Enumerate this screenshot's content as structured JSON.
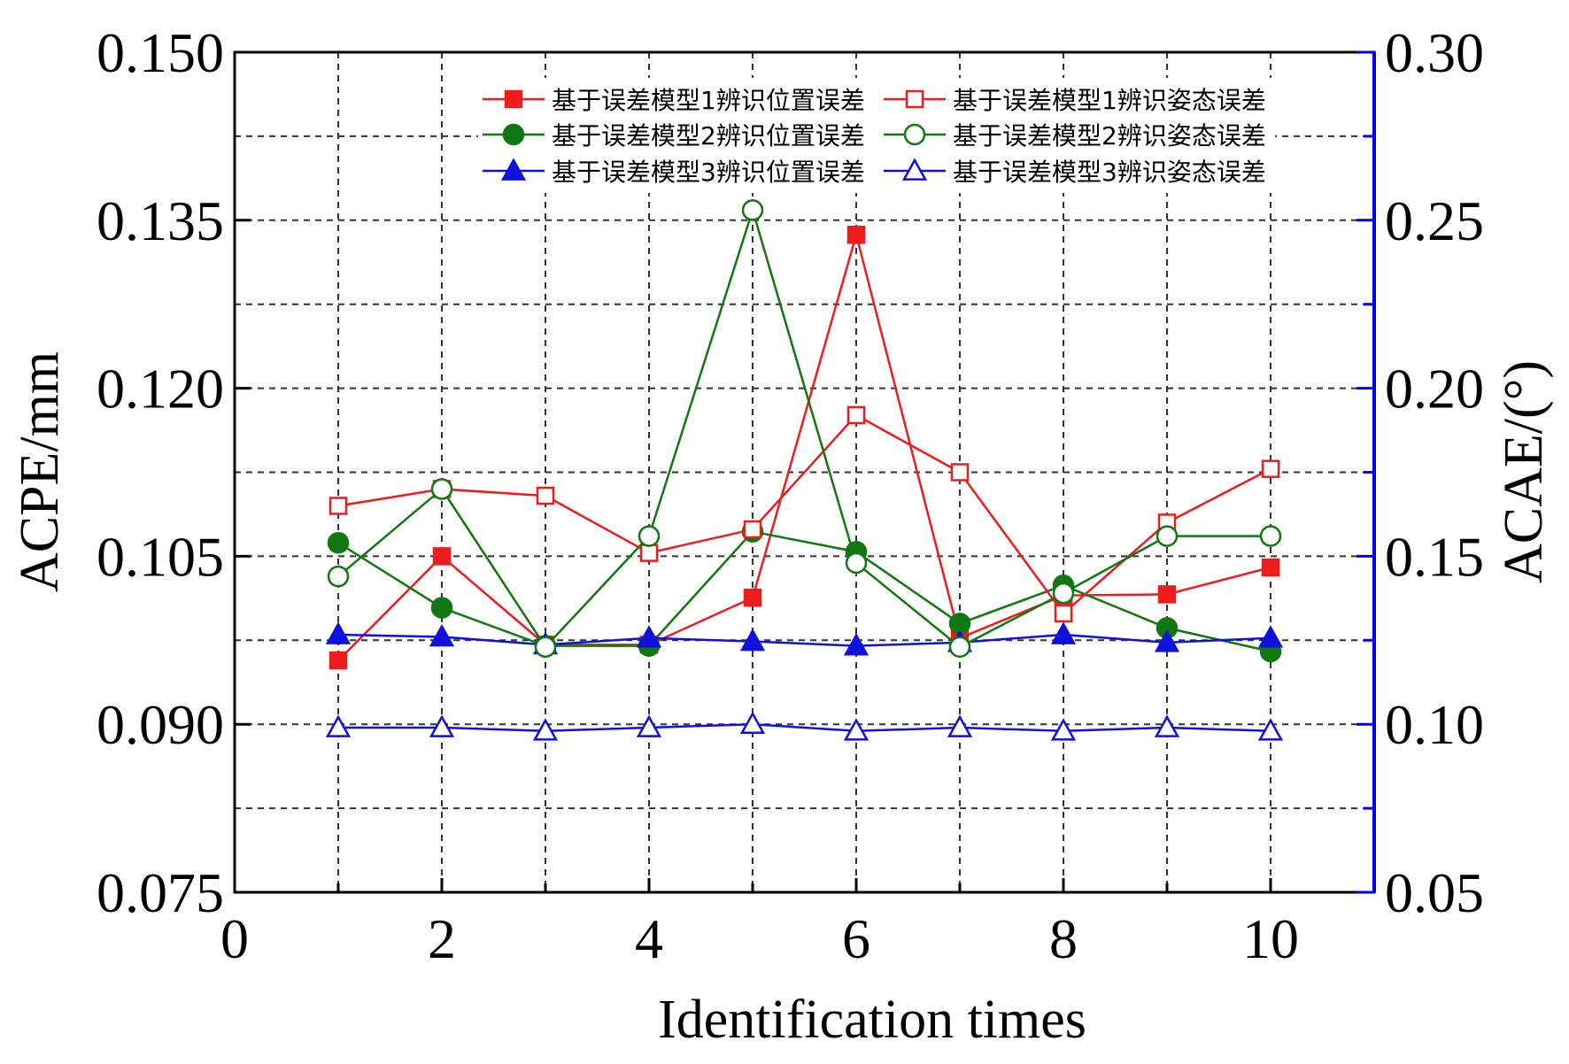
{
  "chart_data": {
    "type": "line",
    "xlabel": "Identification times",
    "ylabel_left": "ACPE/mm",
    "ylabel_right": "ACAE/(°)",
    "xlim": [
      0,
      11
    ],
    "ylim_left": [
      0.075,
      0.15
    ],
    "ylim_right": [
      0.05,
      0.3
    ],
    "x_ticks": [
      "0",
      "2",
      "4",
      "6",
      "8",
      "10"
    ],
    "y_ticks_left": [
      "0.075",
      "0.090",
      "0.105",
      "0.120",
      "0.135",
      "0.150"
    ],
    "y_ticks_right": [
      "0.05",
      "0.10",
      "0.15",
      "0.20",
      "0.25",
      "0.30"
    ],
    "grid": true,
    "legend_position": "top-right",
    "x": [
      1,
      2,
      3,
      4,
      5,
      6,
      7,
      8,
      9,
      10
    ],
    "series": [
      {
        "name": "基于误差模型1辨识位置误差",
        "axis": "left",
        "color": "#ee1c1c",
        "marker": "square",
        "filled": true,
        "values": [
          0.0957,
          0.105,
          0.0971,
          0.0971,
          0.1013,
          0.1337,
          0.0977,
          0.1015,
          0.1016,
          0.104
        ]
      },
      {
        "name": "基于误差模型2辨识位置误差",
        "axis": "left",
        "color": "#117711",
        "marker": "circle",
        "filled": true,
        "values": [
          0.1062,
          0.1004,
          0.097,
          0.097,
          0.1072,
          0.1054,
          0.099,
          0.1024,
          0.0986,
          0.0965
        ]
      },
      {
        "name": "基于误差模型3辨识位置误差",
        "axis": "left",
        "color": "#1111dd",
        "marker": "triangle",
        "filled": true,
        "values": [
          0.098,
          0.0978,
          0.0971,
          0.0977,
          0.0974,
          0.097,
          0.0973,
          0.098,
          0.0973,
          0.0977
        ]
      },
      {
        "name": "基于误差模型1辨识姿态误差",
        "axis": "right",
        "color": "#ee1c1c",
        "marker": "square",
        "filled": false,
        "values": [
          0.165,
          0.17,
          0.168,
          0.151,
          0.158,
          0.192,
          0.175,
          0.133,
          0.16,
          0.176
        ]
      },
      {
        "name": "基于误差模型2辨识姿态误差",
        "axis": "right",
        "color": "#117711",
        "marker": "circle",
        "filled": false,
        "values": [
          0.144,
          0.17,
          0.123,
          0.156,
          0.253,
          0.148,
          0.123,
          0.139,
          0.156,
          0.156
        ]
      },
      {
        "name": "基于误差模型3辨识姿态误差",
        "axis": "right",
        "color": "#1111dd",
        "marker": "triangle",
        "filled": false,
        "values": [
          0.099,
          0.099,
          0.098,
          0.099,
          0.1,
          0.098,
          0.099,
          0.098,
          0.099,
          0.098
        ]
      }
    ]
  }
}
